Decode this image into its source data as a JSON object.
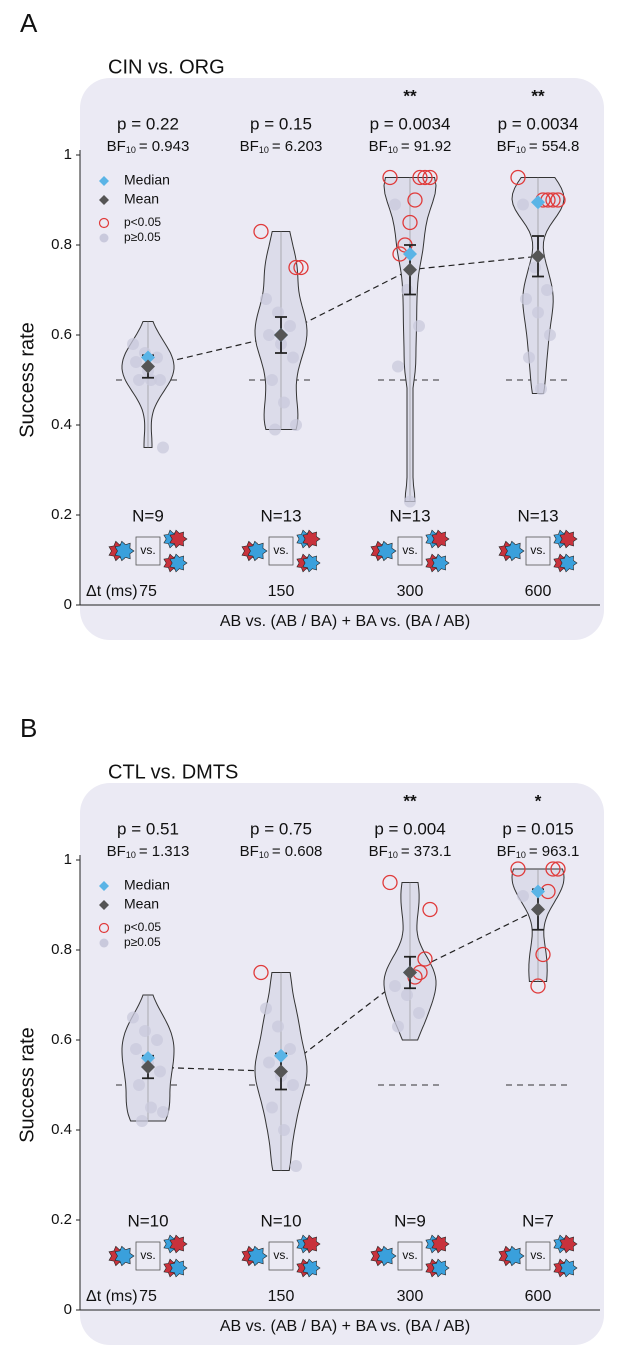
{
  "chart_data": [
    {
      "type": "violin",
      "panel": "A",
      "title": "CIN vs. ORG",
      "ylabel": "Success rate",
      "xlabel": "AB vs. (AB / BA) + BA vs. (BA / AB)",
      "dt_label": "Δt (ms)",
      "ylim": [
        0,
        1
      ],
      "yticks": [
        0,
        0.2,
        0.4,
        0.6,
        0.8,
        1
      ],
      "reference": 0.5,
      "legend": [
        "Median",
        "Mean",
        "p<0.05",
        "p≥0.05"
      ],
      "bf_prefix": "BF",
      "bf_sub": "10",
      "icon_text": "vs.",
      "categories": [
        "75",
        "150",
        "300",
        "600"
      ],
      "p_labels": [
        "p = 0.22",
        "p = 0.15",
        "p = 0.0034",
        "p = 0.0034"
      ],
      "bf_labels": [
        "= 0.943",
        "= 6.203",
        "= 91.92",
        "= 554.8"
      ],
      "stars": [
        null,
        null,
        "**",
        "**"
      ],
      "n_labels": [
        "N=9",
        "N=13",
        "N=13",
        "N=13"
      ],
      "violin_min": [
        0.35,
        0.39,
        0.23,
        0.47
      ],
      "violin_max": [
        0.63,
        0.83,
        0.95,
        0.95
      ],
      "medians": [
        0.55,
        0.6,
        0.78,
        0.895
      ],
      "means": [
        0.53,
        0.6,
        0.745,
        0.775
      ],
      "errors": [
        0.025,
        0.04,
        0.055,
        0.045
      ],
      "sig_points": [
        [],
        [
          0.83,
          0.75,
          0.75
        ],
        [
          0.95,
          0.95,
          0.95,
          0.95,
          0.9,
          0.85,
          0.8,
          0.78
        ],
        [
          0.95,
          0.9,
          0.9,
          0.9,
          0.9
        ]
      ],
      "other_points": [
        [
          0.58,
          0.56,
          0.55,
          0.54,
          0.52,
          0.5,
          0.5,
          0.5,
          0.35
        ],
        [
          0.68,
          0.65,
          0.62,
          0.6,
          0.58,
          0.55,
          0.5,
          0.45,
          0.4,
          0.39
        ],
        [
          0.89,
          0.7,
          0.62,
          0.53,
          0.23
        ],
        [
          0.89,
          0.75,
          0.7,
          0.68,
          0.65,
          0.6,
          0.55,
          0.48
        ]
      ],
      "colors": {
        "median": "#5ab4e6",
        "mean": "#555555",
        "sig": "#e03a3a",
        "nonsig": "#c9c9dc",
        "violin": "#dcdcea"
      }
    },
    {
      "type": "violin",
      "panel": "B",
      "title": "CTL vs. DMTS",
      "ylabel": "Success rate",
      "xlabel": "AB vs. (AB / BA) + BA vs. (BA / AB)",
      "dt_label": "Δt (ms)",
      "ylim": [
        0,
        1
      ],
      "yticks": [
        0,
        0.2,
        0.4,
        0.6,
        0.8,
        1
      ],
      "reference": 0.5,
      "legend": [
        "Median",
        "Mean",
        "p<0.05",
        "p≥0.05"
      ],
      "bf_prefix": "BF",
      "bf_sub": "10",
      "icon_text": "vs.",
      "categories": [
        "75",
        "150",
        "300",
        "600"
      ],
      "p_labels": [
        "p = 0.51",
        "p = 0.75",
        "p = 0.004",
        "p = 0.015"
      ],
      "bf_labels": [
        "= 1.313",
        "= 0.608",
        "= 373.1",
        "= 963.1"
      ],
      "stars": [
        null,
        null,
        "**",
        "*"
      ],
      "n_labels": [
        "N=10",
        "N=10",
        "N=9",
        "N=7"
      ],
      "violin_min": [
        0.42,
        0.31,
        0.6,
        0.73
      ],
      "violin_max": [
        0.7,
        0.75,
        0.95,
        0.98
      ],
      "medians": [
        0.56,
        0.565,
        0.75,
        0.93
      ],
      "means": [
        0.54,
        0.53,
        0.75,
        0.89
      ],
      "errors": [
        0.025,
        0.04,
        0.035,
        0.045
      ],
      "sig_points": [
        [],
        [
          0.75
        ],
        [
          0.95,
          0.89,
          0.78,
          0.75,
          0.74
        ],
        [
          0.98,
          0.98,
          0.98,
          0.93,
          0.79,
          0.72
        ]
      ],
      "other_points": [
        [
          0.65,
          0.62,
          0.6,
          0.58,
          0.55,
          0.53,
          0.5,
          0.45,
          0.44,
          0.42
        ],
        [
          0.67,
          0.63,
          0.58,
          0.55,
          0.52,
          0.5,
          0.45,
          0.4,
          0.32
        ],
        [
          0.72,
          0.7,
          0.66,
          0.63
        ],
        [
          0.92
        ]
      ],
      "colors": {
        "median": "#5ab4e6",
        "mean": "#555555",
        "sig": "#e03a3a",
        "nonsig": "#c9c9dc",
        "violin": "#dcdcea"
      }
    }
  ]
}
